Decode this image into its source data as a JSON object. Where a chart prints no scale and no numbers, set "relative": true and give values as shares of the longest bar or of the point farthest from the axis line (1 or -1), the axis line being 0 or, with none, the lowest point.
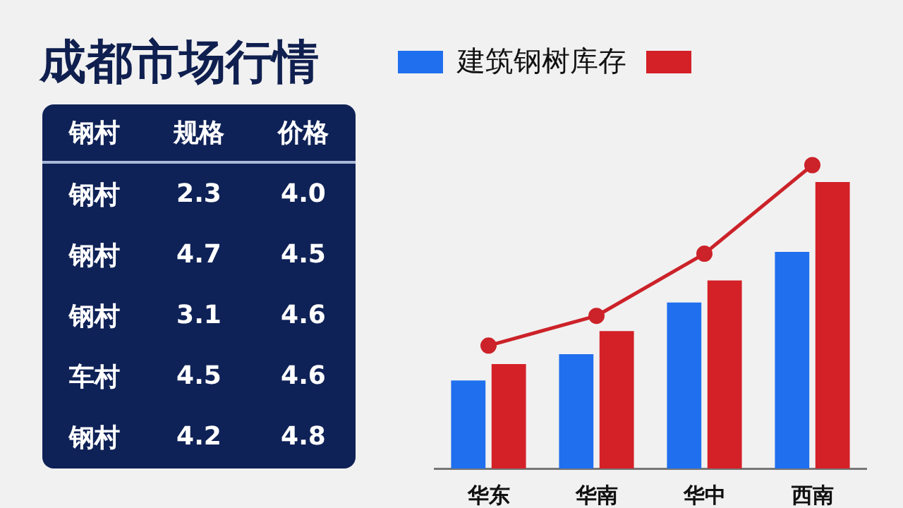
{
  "chart_data": [
    {
      "type": "other",
      "title": "成都市场行情",
      "categories": [
        "钢村",
        "规格",
        "价格"
      ],
      "y_categories": [
        "钢村",
        "钢村",
        "钢村",
        "车村",
        "钢村"
      ],
      "annotations": [
        "2.3",
        "4.0",
        "4.7",
        "4.5",
        "3.1",
        "4.6",
        "4.5",
        "4.6",
        "4.2",
        "4.8"
      ]
    },
    {
      "type": "bar",
      "relative": true,
      "categories": [
        "华东",
        "华南",
        "华中",
        "西南"
      ],
      "series": [
        {
          "name": "建筑钢树库存",
          "color": "#1f6fef",
          "values": [
            0.29,
            0.377,
            0.547,
            0.714
          ]
        },
        {
          "color": "#d42027",
          "values": [
            0.344,
            0.453,
            0.62,
            0.944
          ]
        },
        {
          "type": "line",
          "color": "#cc2229",
          "values": [
            0.405,
            0.503,
            0.708,
            1
          ]
        }
      ],
      "legend": "top",
      "marker": "circle",
      "line_style": "solid"
    }
  ]
}
